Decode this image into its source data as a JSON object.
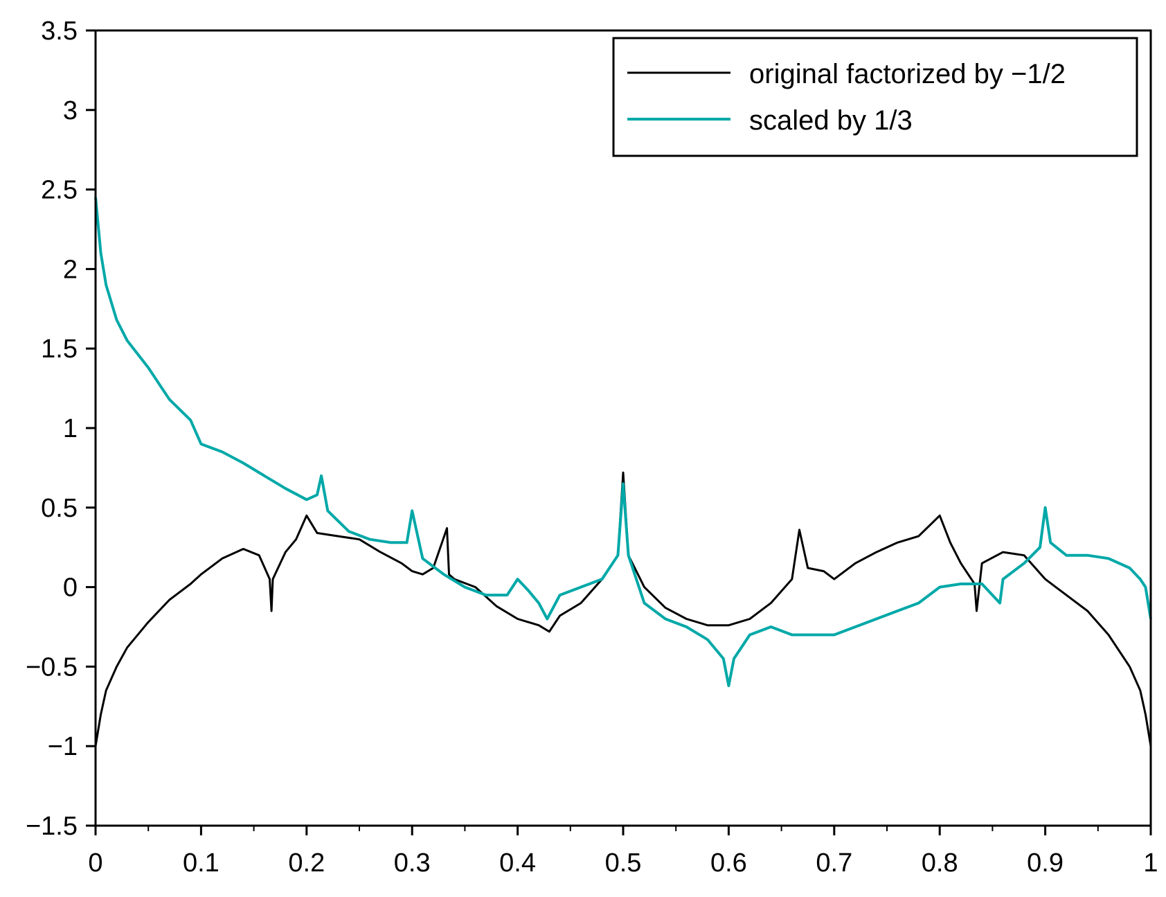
{
  "chart_data": {
    "type": "line",
    "title": "",
    "xlabel": "",
    "ylabel": "",
    "xlim": [
      0,
      1
    ],
    "ylim": [
      -1.5,
      3.5
    ],
    "x_ticks": [
      "0",
      "0.1",
      "0.2",
      "0.3",
      "0.4",
      "0.5",
      "0.6",
      "0.7",
      "0.8",
      "0.9",
      "1"
    ],
    "y_ticks": [
      "−1.5",
      "−1",
      "−0.5",
      "0",
      "0.5",
      "1",
      "1.5",
      "2",
      "2.5",
      "3",
      "3.5"
    ],
    "grid": false,
    "legend_position": "top-right",
    "series": [
      {
        "name": "original factorized by −1/2",
        "color": "#000000",
        "x": [
          0,
          0.005,
          0.01,
          0.02,
          0.03,
          0.05,
          0.07,
          0.09,
          0.1,
          0.12,
          0.14,
          0.155,
          0.165,
          0.1667,
          0.168,
          0.18,
          0.19,
          0.2,
          0.21,
          0.23,
          0.25,
          0.27,
          0.29,
          0.3,
          0.31,
          0.32,
          0.333,
          0.335,
          0.34,
          0.36,
          0.38,
          0.4,
          0.42,
          0.43,
          0.44,
          0.46,
          0.48,
          0.495,
          0.5,
          0.505,
          0.52,
          0.54,
          0.56,
          0.58,
          0.6,
          0.62,
          0.64,
          0.66,
          0.667,
          0.675,
          0.69,
          0.7,
          0.72,
          0.74,
          0.76,
          0.78,
          0.8,
          0.81,
          0.82,
          0.833,
          0.835,
          0.84,
          0.86,
          0.88,
          0.9,
          0.92,
          0.94,
          0.96,
          0.98,
          0.99,
          0.995,
          1
        ],
        "y": [
          -1.0,
          -0.8,
          -0.65,
          -0.5,
          -0.38,
          -0.22,
          -0.08,
          0.02,
          0.08,
          0.18,
          0.24,
          0.2,
          0.05,
          -0.15,
          0.05,
          0.22,
          0.3,
          0.45,
          0.34,
          0.32,
          0.3,
          0.22,
          0.15,
          0.1,
          0.08,
          0.12,
          0.37,
          0.08,
          0.05,
          0.0,
          -0.12,
          -0.2,
          -0.24,
          -0.28,
          -0.18,
          -0.1,
          0.05,
          0.2,
          0.72,
          0.2,
          0.0,
          -0.13,
          -0.2,
          -0.24,
          -0.24,
          -0.2,
          -0.1,
          0.05,
          0.36,
          0.12,
          0.1,
          0.05,
          0.15,
          0.22,
          0.28,
          0.32,
          0.45,
          0.28,
          0.15,
          0.02,
          -0.15,
          0.15,
          0.22,
          0.2,
          0.05,
          -0.05,
          -0.15,
          -0.3,
          -0.5,
          -0.65,
          -0.8,
          -1.0
        ]
      },
      {
        "name": "scaled by 1/3",
        "color": "#00a8a8",
        "x": [
          0,
          0.005,
          0.01,
          0.02,
          0.03,
          0.05,
          0.07,
          0.09,
          0.1,
          0.12,
          0.14,
          0.16,
          0.18,
          0.2,
          0.21,
          0.214,
          0.22,
          0.24,
          0.26,
          0.28,
          0.295,
          0.3,
          0.31,
          0.33,
          0.35,
          0.37,
          0.39,
          0.4,
          0.41,
          0.42,
          0.428,
          0.44,
          0.46,
          0.48,
          0.495,
          0.5,
          0.505,
          0.52,
          0.54,
          0.56,
          0.58,
          0.595,
          0.6,
          0.605,
          0.62,
          0.64,
          0.66,
          0.68,
          0.7,
          0.72,
          0.74,
          0.76,
          0.78,
          0.8,
          0.82,
          0.84,
          0.857,
          0.86,
          0.88,
          0.895,
          0.9,
          0.905,
          0.92,
          0.94,
          0.96,
          0.98,
          0.99,
          0.995,
          1
        ],
        "y": [
          2.45,
          2.1,
          1.9,
          1.68,
          1.55,
          1.38,
          1.18,
          1.05,
          0.9,
          0.85,
          0.78,
          0.7,
          0.62,
          0.55,
          0.58,
          0.7,
          0.48,
          0.35,
          0.3,
          0.28,
          0.28,
          0.48,
          0.18,
          0.08,
          0.0,
          -0.05,
          -0.05,
          0.05,
          -0.02,
          -0.1,
          -0.2,
          -0.05,
          0.0,
          0.05,
          0.2,
          0.65,
          0.2,
          -0.1,
          -0.2,
          -0.25,
          -0.33,
          -0.45,
          -0.62,
          -0.45,
          -0.3,
          -0.25,
          -0.3,
          -0.3,
          -0.3,
          -0.25,
          -0.2,
          -0.15,
          -0.1,
          0.0,
          0.02,
          0.02,
          -0.1,
          0.05,
          0.15,
          0.25,
          0.5,
          0.28,
          0.2,
          0.2,
          0.18,
          0.12,
          0.05,
          0.0,
          -0.2
        ]
      }
    ]
  }
}
